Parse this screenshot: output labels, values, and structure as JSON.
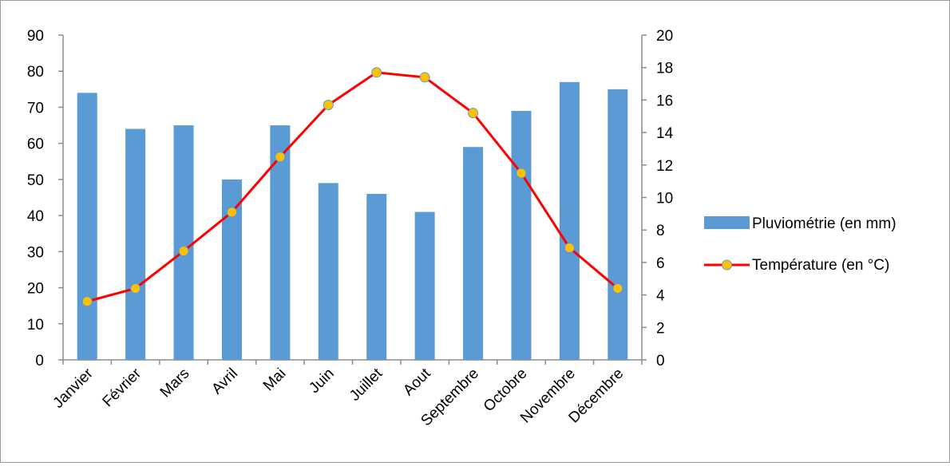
{
  "chart_data": {
    "type": "bar+line",
    "categories": [
      "Janvier",
      "Février",
      "Mars",
      "Avril",
      "Mai",
      "Juin",
      "Juillet",
      "Aout",
      "Septembre",
      "Octobre",
      "Novembre",
      "Décembre"
    ],
    "series": [
      {
        "name": "Pluviométrie (en mm)",
        "type": "bar",
        "axis": "left",
        "color": "#5b9bd5",
        "values": [
          74,
          64,
          65,
          50,
          65,
          49,
          46,
          41,
          59,
          69,
          77,
          75
        ]
      },
      {
        "name": "Température (en °C)",
        "type": "line",
        "axis": "right",
        "color": "#ff0000",
        "marker_fill": "#ffc000",
        "marker_stroke": "#5b9bd5",
        "values": [
          3.6,
          4.4,
          6.7,
          9.1,
          12.5,
          15.7,
          17.7,
          17.4,
          15.2,
          11.5,
          6.9,
          4.4
        ]
      }
    ],
    "y_left": {
      "min": 0,
      "max": 90,
      "step": 10,
      "ticks": [
        "0",
        "10",
        "20",
        "30",
        "40",
        "50",
        "60",
        "70",
        "80",
        "90"
      ]
    },
    "y_right": {
      "min": 0,
      "max": 20,
      "step": 2,
      "ticks": [
        "0",
        "2",
        "4",
        "6",
        "8",
        "10",
        "12",
        "14",
        "16",
        "18",
        "20"
      ]
    },
    "title": "",
    "xlabel": "",
    "ylabel": "",
    "grid": false,
    "legend_position": "right"
  }
}
